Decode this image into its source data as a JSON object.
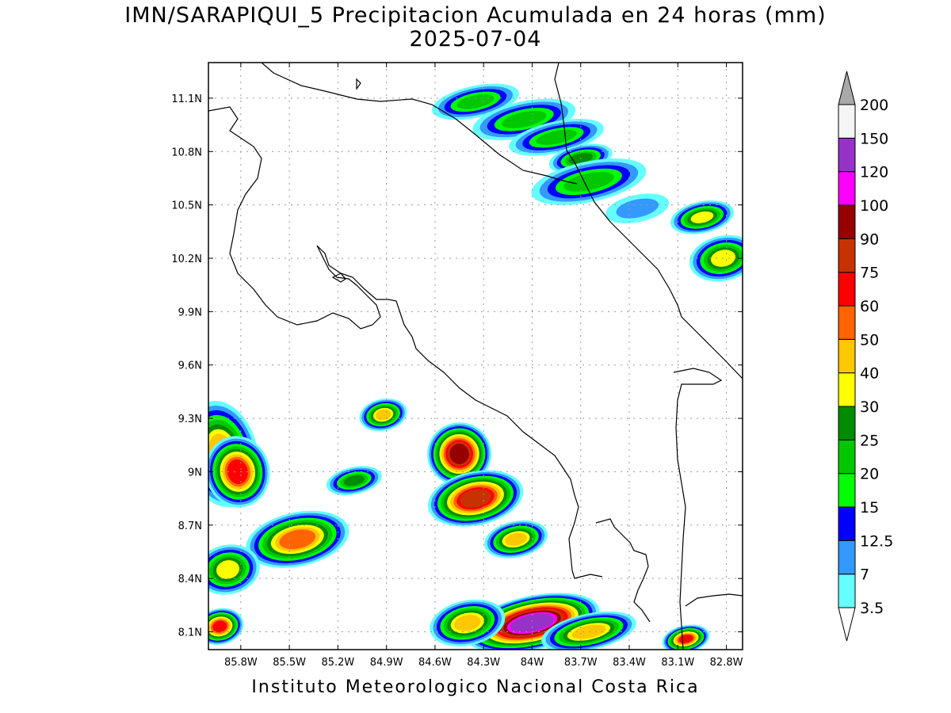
{
  "title": {
    "line1": "IMN/SARAPIQUI_5 Precipitacion Acumulada en 24 horas (mm)",
    "line2": "2025-07-04"
  },
  "credit": "Instituto Meteorologico Nacional Costa Rica",
  "map": {
    "lon_range": [
      -86.0,
      -82.7
    ],
    "lat_range": [
      8.0,
      11.3
    ],
    "grid": true,
    "lat_ticks": [
      {
        "value": 11.1,
        "label": "11.1N"
      },
      {
        "value": 10.8,
        "label": "10.8N"
      },
      {
        "value": 10.5,
        "label": "10.5N"
      },
      {
        "value": 10.2,
        "label": "10.2N"
      },
      {
        "value": 9.9,
        "label": "9.9N"
      },
      {
        "value": 9.6,
        "label": "9.6N"
      },
      {
        "value": 9.3,
        "label": "9.3N"
      },
      {
        "value": 9.0,
        "label": "9N"
      },
      {
        "value": 8.7,
        "label": "8.7N"
      },
      {
        "value": 8.4,
        "label": "8.4N"
      },
      {
        "value": 8.1,
        "label": "8.1N"
      }
    ],
    "lon_ticks": [
      {
        "value": -85.8,
        "label": "85.8W"
      },
      {
        "value": -85.5,
        "label": "85.5W"
      },
      {
        "value": -85.2,
        "label": "85.2W"
      },
      {
        "value": -84.9,
        "label": "84.9W"
      },
      {
        "value": -84.6,
        "label": "84.6W"
      },
      {
        "value": -84.3,
        "label": "84.3W"
      },
      {
        "value": -84.0,
        "label": "84W"
      },
      {
        "value": -83.7,
        "label": "83.7W"
      },
      {
        "value": -83.4,
        "label": "83.4W"
      },
      {
        "value": -83.1,
        "label": "83.1W"
      },
      {
        "value": -82.8,
        "label": "82.8W"
      }
    ]
  },
  "colorbar": {
    "levels": [
      {
        "label": "3.5",
        "color": "#66ffff"
      },
      {
        "label": "7",
        "color": "#3399ff"
      },
      {
        "label": "12.5",
        "color": "#0000ff"
      },
      {
        "label": "15",
        "color": "#00ff00"
      },
      {
        "label": "20",
        "color": "#00c800"
      },
      {
        "label": "25",
        "color": "#008c00"
      },
      {
        "label": "30",
        "color": "#ffff00"
      },
      {
        "label": "40",
        "color": "#ffc800"
      },
      {
        "label": "50",
        "color": "#ff6400"
      },
      {
        "label": "60",
        "color": "#ff0000"
      },
      {
        "label": "75",
        "color": "#c83200"
      },
      {
        "label": "90",
        "color": "#960000"
      },
      {
        "label": "100",
        "color": "#ff00ff"
      },
      {
        "label": "120",
        "color": "#9632c8"
      },
      {
        "label": "150",
        "color": "#f5f5f5"
      },
      {
        "label": "200",
        "color": "#a9a9a9"
      }
    ],
    "under_color": "#ffffff",
    "over_color": "#a9a9a9"
  },
  "precip_cells": [
    {
      "name": "caribbean-band-1",
      "lon": -84.35,
      "lat": 11.08,
      "rx": 0.18,
      "ry": 0.05,
      "peak": 22
    },
    {
      "name": "caribbean-band-2",
      "lon": -84.05,
      "lat": 10.98,
      "rx": 0.22,
      "ry": 0.06,
      "peak": 24
    },
    {
      "name": "caribbean-band-3",
      "lon": -83.85,
      "lat": 10.88,
      "rx": 0.2,
      "ry": 0.05,
      "peak": 22
    },
    {
      "name": "caribbean-band-4",
      "lon": -83.7,
      "lat": 10.76,
      "rx": 0.12,
      "ry": 0.04,
      "peak": 26
    },
    {
      "name": "caribbean-band-5",
      "lon": -83.65,
      "lat": 10.63,
      "rx": 0.25,
      "ry": 0.07,
      "peak": 22
    },
    {
      "name": "caribbean-band-6",
      "lon": -82.95,
      "lat": 10.43,
      "rx": 0.12,
      "ry": 0.05,
      "peak": 34
    },
    {
      "name": "caribbean-band-7",
      "lon": -82.82,
      "lat": 10.2,
      "rx": 0.13,
      "ry": 0.08,
      "peak": 34
    },
    {
      "name": "caribbean-band-8",
      "lon": -83.35,
      "lat": 10.48,
      "rx": 0.12,
      "ry": 0.04,
      "peak": 10
    },
    {
      "name": "pacific-cell-1",
      "lon": -85.92,
      "lat": 9.1,
      "rx": 0.14,
      "ry": 0.22,
      "peak": 45
    },
    {
      "name": "pacific-cell-2",
      "lon": -85.82,
      "lat": 9.0,
      "rx": 0.12,
      "ry": 0.14,
      "peak": 65
    },
    {
      "name": "pacific-cell-3",
      "lon": -85.45,
      "lat": 8.62,
      "rx": 0.22,
      "ry": 0.1,
      "peak": 55
    },
    {
      "name": "pacific-cell-4",
      "lon": -85.88,
      "lat": 8.45,
      "rx": 0.12,
      "ry": 0.09,
      "peak": 30
    },
    {
      "name": "pacific-cell-5",
      "lon": -85.93,
      "lat": 8.13,
      "rx": 0.08,
      "ry": 0.06,
      "peak": 60
    },
    {
      "name": "pacific-cell-6",
      "lon": -84.92,
      "lat": 9.32,
      "rx": 0.08,
      "ry": 0.05,
      "peak": 42
    },
    {
      "name": "pacific-cell-7",
      "lon": -85.1,
      "lat": 8.95,
      "rx": 0.1,
      "ry": 0.04,
      "peak": 25
    },
    {
      "name": "pacific-cell-8",
      "lon": -84.45,
      "lat": 9.1,
      "rx": 0.12,
      "ry": 0.12,
      "peak": 90
    },
    {
      "name": "pacific-cell-9",
      "lon": -84.35,
      "lat": 8.85,
      "rx": 0.2,
      "ry": 0.1,
      "peak": 75
    },
    {
      "name": "pacific-cell-10",
      "lon": -84.1,
      "lat": 8.62,
      "rx": 0.12,
      "ry": 0.06,
      "peak": 45
    },
    {
      "name": "pacific-cell-11",
      "lon": -84.0,
      "lat": 8.15,
      "rx": 0.3,
      "ry": 0.1,
      "peak": 120
    },
    {
      "name": "pacific-cell-12",
      "lon": -84.4,
      "lat": 8.15,
      "rx": 0.15,
      "ry": 0.08,
      "peak": 45
    },
    {
      "name": "pacific-cell-13",
      "lon": -83.65,
      "lat": 8.1,
      "rx": 0.2,
      "ry": 0.06,
      "peak": 45
    },
    {
      "name": "pacific-cell-14",
      "lon": -83.05,
      "lat": 8.06,
      "rx": 0.08,
      "ry": 0.04,
      "peak": 65
    }
  ]
}
